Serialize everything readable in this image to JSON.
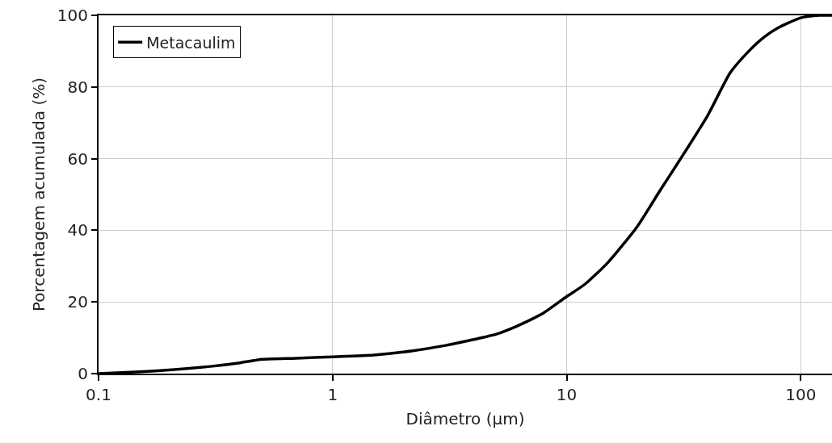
{
  "chart_data": {
    "type": "line",
    "xlabel": "Diâmetro (µm)",
    "ylabel": "Porcentagem acumulada (%)",
    "log": "x",
    "xlim": [
      0.1,
      136
    ],
    "xticks": [
      0.1,
      1,
      10,
      100
    ],
    "ylim": [
      0,
      100
    ],
    "yticks": [
      0,
      20,
      40,
      60,
      80,
      100
    ],
    "x": [
      0.1,
      0.15,
      0.2,
      0.3,
      0.4,
      0.5,
      0.7,
      1,
      1.5,
      2,
      3,
      4,
      5,
      6,
      7,
      8,
      10,
      12,
      15,
      20,
      25,
      30,
      40,
      50,
      60,
      70,
      80,
      100,
      120,
      136
    ],
    "series": [
      {
        "name": "Metacaulim",
        "color": "#000000",
        "values": [
          0,
          0.5,
          1,
          2,
          3,
          4,
          4.3,
          4.7,
          5.2,
          6,
          7.8,
          9.5,
          11,
          13,
          15,
          17,
          21.5,
          25,
          31,
          41,
          51,
          59,
          72,
          84,
          90,
          94,
          96.5,
          99.3,
          100,
          100
        ]
      }
    ],
    "grid": true,
    "legend": "top left",
    "line_style": "solid",
    "marker": "none"
  }
}
